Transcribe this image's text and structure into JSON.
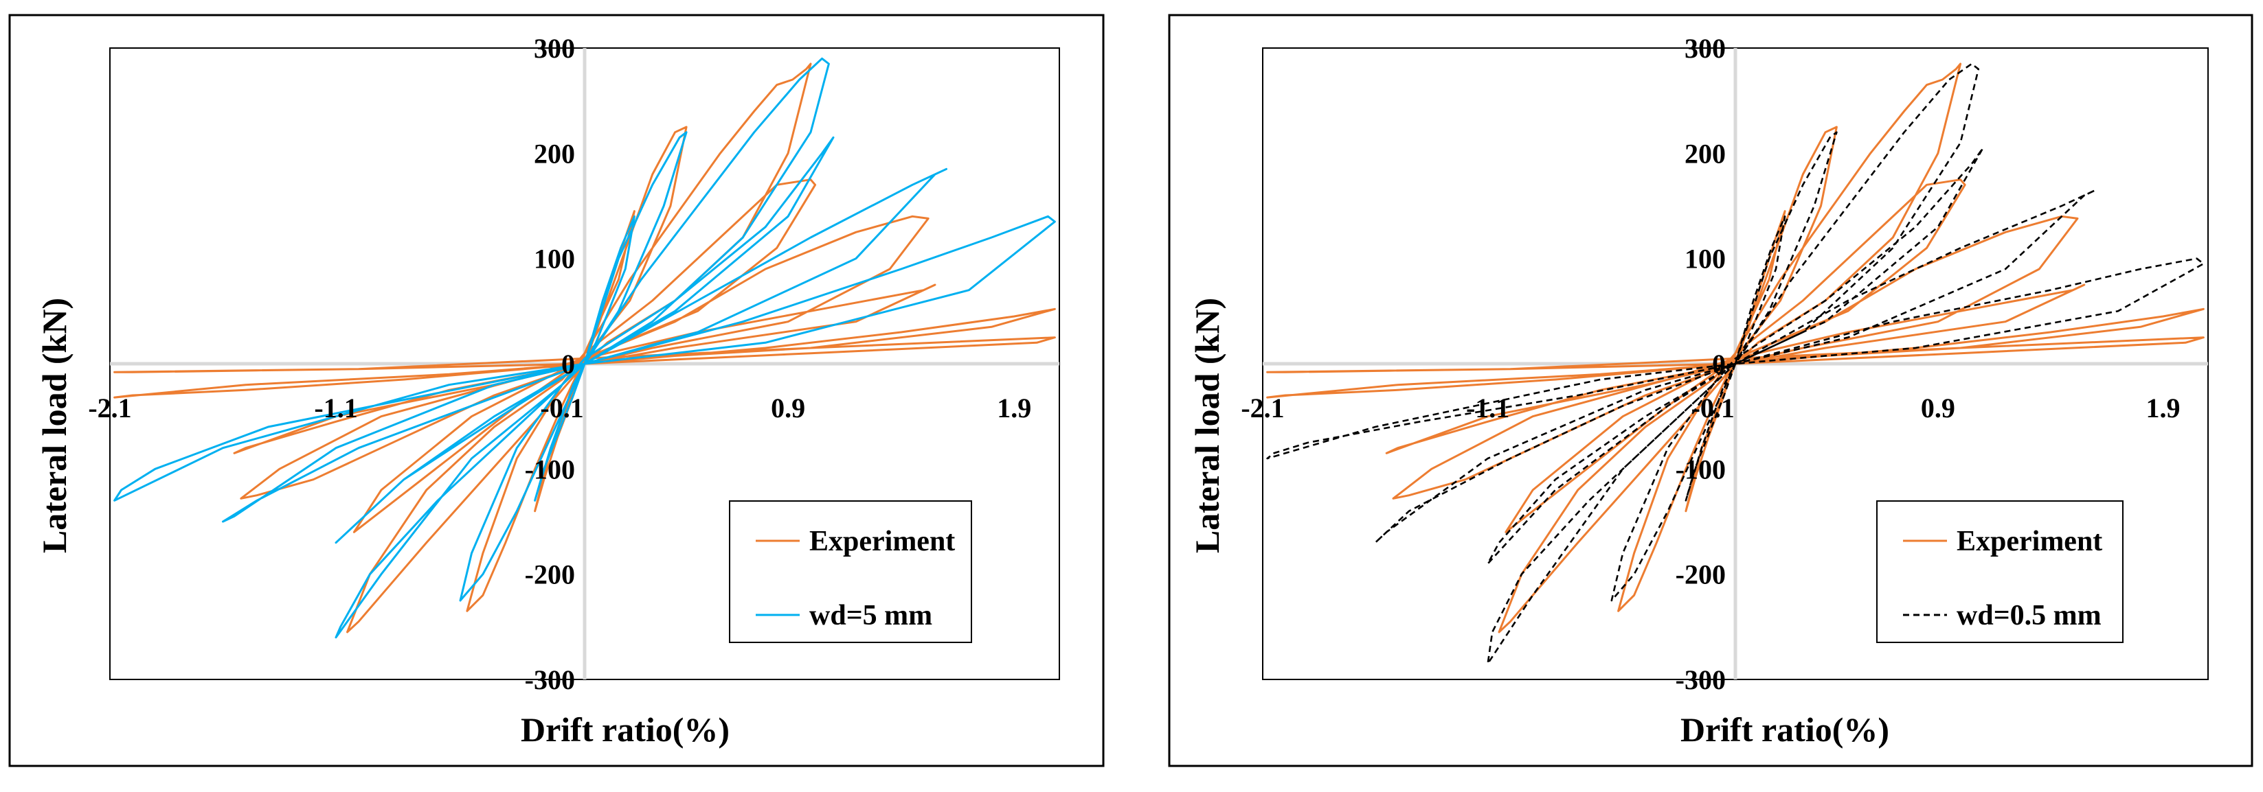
{
  "colors": {
    "experiment": "#ED7D31",
    "wd5": "#00B0F0",
    "wd05": "#000000",
    "axis": "#D9D9D9",
    "frame": "#000000"
  },
  "chart_data": [
    {
      "type": "line",
      "xlabel": "Drift ratio(%)",
      "ylabel": "Lateral load (kN)",
      "xlim": [
        -2.1,
        2.1
      ],
      "ylim": [
        -300,
        300
      ],
      "x_ticks": [
        -2.1,
        -1.1,
        -0.1,
        0.9,
        1.9
      ],
      "x_tick_labels": [
        "-2.1",
        "-1.1",
        "-0.1",
        "0.9",
        "1.9"
      ],
      "y_ticks": [
        300,
        200,
        100,
        0,
        -100,
        -200,
        -300
      ],
      "y_tick_labels": [
        "300",
        "200",
        "100",
        "0",
        "-100",
        "-200",
        "-300"
      ],
      "legend": "bottom-right",
      "series": [
        {
          "name": "Experiment",
          "style": "solid",
          "x": [
            0.0,
            0.06,
            0.12,
            0.18,
            0.22,
            0.15,
            0.0,
            -0.05,
            -0.12,
            -0.18,
            -0.22,
            -0.15,
            0.0,
            0.1,
            0.2,
            0.3,
            0.4,
            0.45,
            0.38,
            0.2,
            0.0,
            -0.1,
            -0.22,
            -0.35,
            -0.45,
            -0.52,
            -0.45,
            -0.3,
            -0.1,
            0.0,
            0.2,
            0.4,
            0.6,
            0.75,
            0.85,
            0.92,
            0.98,
            1.0,
            0.9,
            0.7,
            0.4,
            0.1,
            0.0,
            -0.2,
            -0.45,
            -0.7,
            -0.9,
            -1.0,
            -1.05,
            -0.95,
            -0.7,
            -0.4,
            -0.1,
            0.0,
            0.3,
            0.6,
            0.85,
            1.0,
            1.02,
            0.85,
            0.5,
            0.0,
            -0.3,
            -0.6,
            -0.9,
            -1.02,
            -0.9,
            -0.5,
            0.0,
            0.4,
            0.8,
            1.2,
            1.45,
            1.52,
            1.35,
            0.9,
            0.3,
            0.0,
            -0.4,
            -0.8,
            -1.2,
            -1.45,
            -1.52,
            -1.35,
            -0.9,
            -0.3,
            0.0,
            0.5,
            1.0,
            1.5,
            1.55,
            1.2,
            0.4,
            0.0,
            -0.6,
            -1.1,
            -1.5,
            -1.55,
            -1.1,
            -0.4,
            0.0,
            0.8,
            1.4,
            1.9,
            2.08,
            1.8,
            1.0,
            0.2,
            0.0,
            -0.8,
            -1.5,
            -2.0,
            -2.08,
            -1.5,
            -0.6,
            0.0,
            1.0,
            2.0,
            2.08,
            1.0,
            0.0,
            -1.0,
            -2.0,
            -2.08,
            -1.0,
            0.0
          ],
          "y": [
            0,
            40,
            80,
            120,
            145,
            80,
            10,
            -30,
            -70,
            -110,
            -140,
            -80,
            0,
            60,
            120,
            180,
            220,
            225,
            150,
            60,
            5,
            -40,
            -100,
            -170,
            -220,
            -235,
            -180,
            -90,
            -20,
            10,
            80,
            140,
            200,
            240,
            265,
            270,
            280,
            285,
            200,
            120,
            60,
            20,
            0,
            -50,
            -110,
            -170,
            -220,
            -245,
            -255,
            -200,
            -120,
            -60,
            -15,
            10,
            60,
            120,
            170,
            175,
            170,
            110,
            50,
            5,
            -40,
            -90,
            -140,
            -160,
            -120,
            -50,
            5,
            40,
            90,
            125,
            140,
            138,
            90,
            40,
            15,
            0,
            -30,
            -70,
            -110,
            -125,
            -128,
            -100,
            -50,
            -15,
            5,
            30,
            50,
            70,
            75,
            40,
            15,
            0,
            -25,
            -55,
            -80,
            -85,
            -50,
            -20,
            0,
            15,
            30,
            45,
            52,
            35,
            15,
            5,
            0,
            -15,
            -25,
            -30,
            -32,
            -20,
            -10,
            0,
            10,
            20,
            25,
            15,
            5,
            -5,
            -8,
            -8,
            -5,
            0
          ]
        },
        {
          "name": "wd=5 mm",
          "style": "solid",
          "x": [
            0.0,
            0.08,
            0.16,
            0.22,
            0.18,
            0.05,
            -0.05,
            -0.15,
            -0.22,
            -0.18,
            -0.05,
            0.0,
            0.15,
            0.3,
            0.42,
            0.45,
            0.35,
            0.15,
            0.0,
            -0.15,
            -0.3,
            -0.45,
            -0.55,
            -0.5,
            -0.3,
            -0.1,
            0.0,
            0.25,
            0.5,
            0.75,
            0.95,
            1.05,
            1.08,
            1.0,
            0.7,
            0.3,
            0.0,
            -0.3,
            -0.65,
            -0.95,
            -1.08,
            -1.1,
            -0.9,
            -0.5,
            -0.1,
            0.0,
            0.4,
            0.8,
            1.05,
            1.1,
            0.9,
            0.4,
            0.0,
            -0.4,
            -0.8,
            -1.05,
            -1.1,
            -0.8,
            -0.3,
            0.0,
            0.5,
            1.0,
            1.45,
            1.6,
            1.55,
            1.2,
            0.5,
            0.0,
            -0.5,
            -1.0,
            -1.45,
            -1.6,
            -1.55,
            -1.1,
            -0.4,
            0.0,
            0.7,
            1.4,
            1.8,
            2.05,
            2.08,
            1.7,
            0.8,
            0.0,
            -0.7,
            -1.4,
            -1.9,
            -2.05,
            -2.08,
            -1.6,
            -0.6,
            0.0
          ],
          "y": [
            0,
            60,
            110,
            140,
            90,
            20,
            -20,
            -80,
            -130,
            -100,
            -30,
            0,
            100,
            170,
            215,
            220,
            150,
            50,
            0,
            -70,
            -140,
            -200,
            -225,
            -180,
            -80,
            -20,
            0,
            80,
            150,
            220,
            270,
            290,
            285,
            220,
            120,
            40,
            0,
            -60,
            -130,
            -200,
            -250,
            -260,
            -200,
            -90,
            -20,
            5,
            60,
            130,
            200,
            215,
            140,
            50,
            0,
            -50,
            -110,
            -160,
            -170,
            -110,
            -40,
            0,
            60,
            120,
            170,
            185,
            180,
            100,
            30,
            0,
            -40,
            -80,
            -130,
            -150,
            -145,
            -80,
            -20,
            0,
            40,
            90,
            120,
            140,
            135,
            70,
            20,
            0,
            -30,
            -60,
            -100,
            -120,
            -130,
            -80,
            -20,
            0
          ]
        }
      ]
    },
    {
      "type": "line",
      "xlabel": "Drift ratio(%)",
      "ylabel": "Lateral load (kN)",
      "xlim": [
        -2.1,
        2.1
      ],
      "ylim": [
        -300,
        300
      ],
      "x_ticks": [
        -2.1,
        -1.1,
        -0.1,
        0.9,
        1.9
      ],
      "x_tick_labels": [
        "-2.1",
        "-1.1",
        "-0.1",
        "0.9",
        "1.9"
      ],
      "y_ticks": [
        300,
        200,
        100,
        0,
        -100,
        -200,
        -300
      ],
      "y_tick_labels": [
        "300",
        "200",
        "100",
        "0",
        "-100",
        "-200",
        "-300"
      ],
      "legend": "bottom-right",
      "series": [
        {
          "name": "Experiment",
          "style": "solid",
          "x": [
            0.0,
            0.06,
            0.12,
            0.18,
            0.22,
            0.15,
            0.0,
            -0.05,
            -0.12,
            -0.18,
            -0.22,
            -0.15,
            0.0,
            0.1,
            0.2,
            0.3,
            0.4,
            0.45,
            0.38,
            0.2,
            0.0,
            -0.1,
            -0.22,
            -0.35,
            -0.45,
            -0.52,
            -0.45,
            -0.3,
            -0.1,
            0.0,
            0.2,
            0.4,
            0.6,
            0.75,
            0.85,
            0.92,
            0.98,
            1.0,
            0.9,
            0.7,
            0.4,
            0.1,
            0.0,
            -0.2,
            -0.45,
            -0.7,
            -0.9,
            -1.0,
            -1.05,
            -0.95,
            -0.7,
            -0.4,
            -0.1,
            0.0,
            0.3,
            0.6,
            0.85,
            1.0,
            1.02,
            0.85,
            0.5,
            0.0,
            -0.3,
            -0.6,
            -0.9,
            -1.02,
            -0.9,
            -0.5,
            0.0,
            0.4,
            0.8,
            1.2,
            1.45,
            1.52,
            1.35,
            0.9,
            0.3,
            0.0,
            -0.4,
            -0.8,
            -1.2,
            -1.45,
            -1.52,
            -1.35,
            -0.9,
            -0.3,
            0.0,
            0.5,
            1.0,
            1.5,
            1.55,
            1.2,
            0.4,
            0.0,
            -0.6,
            -1.1,
            -1.5,
            -1.55,
            -1.1,
            -0.4,
            0.0,
            0.8,
            1.4,
            1.9,
            2.08,
            1.8,
            1.0,
            0.2,
            0.0,
            -0.8,
            -1.5,
            -2.0,
            -2.08,
            -1.5,
            -0.6,
            0.0,
            1.0,
            2.0,
            2.08,
            1.0,
            0.0,
            -1.0,
            -2.0,
            -2.08,
            -1.0,
            0.0
          ],
          "y": [
            0,
            40,
            80,
            120,
            145,
            80,
            10,
            -30,
            -70,
            -110,
            -140,
            -80,
            0,
            60,
            120,
            180,
            220,
            225,
            150,
            60,
            5,
            -40,
            -100,
            -170,
            -220,
            -235,
            -180,
            -90,
            -20,
            10,
            80,
            140,
            200,
            240,
            265,
            270,
            280,
            285,
            200,
            120,
            60,
            20,
            0,
            -50,
            -110,
            -170,
            -220,
            -245,
            -255,
            -200,
            -120,
            -60,
            -15,
            10,
            60,
            120,
            170,
            175,
            170,
            110,
            50,
            5,
            -40,
            -90,
            -140,
            -160,
            -120,
            -50,
            5,
            40,
            90,
            125,
            140,
            138,
            90,
            40,
            15,
            0,
            -30,
            -70,
            -110,
            -125,
            -128,
            -100,
            -50,
            -15,
            5,
            30,
            50,
            70,
            75,
            40,
            15,
            0,
            -25,
            -55,
            -80,
            -85,
            -50,
            -20,
            0,
            15,
            30,
            45,
            52,
            35,
            15,
            5,
            0,
            -15,
            -25,
            -30,
            -32,
            -20,
            -10,
            0,
            10,
            20,
            25,
            15,
            5,
            -5,
            -8,
            -8,
            -5,
            0
          ]
        },
        {
          "name": "wd=0.5 mm",
          "style": "dashed",
          "x": [
            0.0,
            0.08,
            0.16,
            0.22,
            0.18,
            0.05,
            -0.05,
            -0.15,
            -0.22,
            -0.18,
            -0.05,
            0.0,
            0.15,
            0.3,
            0.42,
            0.45,
            0.35,
            0.15,
            0.0,
            -0.15,
            -0.3,
            -0.45,
            -0.55,
            -0.5,
            -0.3,
            -0.1,
            0.0,
            0.25,
            0.5,
            0.75,
            0.95,
            1.05,
            1.08,
            1.0,
            0.7,
            0.3,
            0.0,
            -0.3,
            -0.65,
            -0.95,
            -1.08,
            -1.1,
            -0.9,
            -0.5,
            -0.1,
            0.0,
            0.4,
            0.8,
            1.05,
            1.1,
            0.9,
            0.4,
            0.0,
            -0.4,
            -0.8,
            -1.05,
            -1.1,
            -0.8,
            -0.3,
            0.0,
            0.5,
            1.0,
            1.45,
            1.6,
            1.55,
            1.2,
            0.5,
            0.0,
            -0.5,
            -1.0,
            -1.45,
            -1.6,
            -1.55,
            -1.1,
            -0.4,
            0.0,
            0.7,
            1.4,
            1.8,
            2.05,
            2.08,
            1.7,
            0.8,
            0.0,
            -0.7,
            -1.4,
            -1.9,
            -2.05,
            -2.08,
            -1.6,
            -0.6,
            0.0
          ],
          "y": [
            0,
            60,
            110,
            140,
            90,
            20,
            -20,
            -80,
            -130,
            -100,
            -30,
            0,
            100,
            170,
            215,
            220,
            150,
            50,
            0,
            -70,
            -140,
            -200,
            -225,
            -180,
            -80,
            -20,
            0,
            80,
            150,
            220,
            270,
            285,
            280,
            210,
            110,
            30,
            0,
            -60,
            -130,
            -200,
            -255,
            -285,
            -220,
            -100,
            -20,
            5,
            60,
            130,
            190,
            205,
            130,
            40,
            0,
            -50,
            -110,
            -170,
            -190,
            -120,
            -40,
            0,
            60,
            110,
            150,
            165,
            160,
            90,
            25,
            0,
            -40,
            -90,
            -140,
            -170,
            -160,
            -90,
            -25,
            0,
            40,
            70,
            90,
            100,
            95,
            50,
            15,
            0,
            -30,
            -55,
            -75,
            -85,
            -90,
            -60,
            -15,
            0
          ]
        }
      ]
    }
  ]
}
